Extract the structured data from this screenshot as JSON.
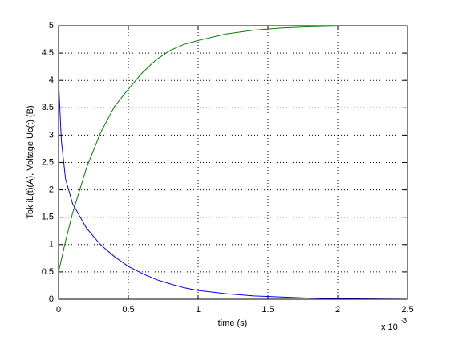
{
  "chart_data": {
    "type": "line",
    "x_label": "time (s)",
    "y_label": "Tok iL(t)(A), Voltage Uc(t) (B)",
    "x_multiplier": {
      "base": "x 10",
      "exponent": "-3"
    },
    "xlim": [
      0,
      2.5
    ],
    "xticks": [
      0,
      0.5,
      1,
      1.5,
      2,
      2.5
    ],
    "ylim": [
      0,
      5
    ],
    "yticks": [
      0,
      0.5,
      1,
      1.5,
      2,
      2.5,
      3,
      3.5,
      4,
      4.5,
      5
    ],
    "grid": true,
    "series": [
      {
        "color": "#0000ff",
        "x": [
          0,
          0.02,
          0.05,
          0.1,
          0.2,
          0.3,
          0.4,
          0.5,
          0.6,
          0.7,
          0.8,
          0.9,
          1.0,
          1.2,
          1.4,
          1.6,
          1.8,
          2.0,
          2.2,
          2.5
        ],
        "values": [
          4.0,
          2.9,
          2.2,
          1.75,
          1.3,
          1.0,
          0.78,
          0.6,
          0.47,
          0.36,
          0.28,
          0.21,
          0.16,
          0.1,
          0.06,
          0.04,
          0.02,
          0.01,
          0.005,
          0
        ]
      },
      {
        "color": "#008000",
        "x": [
          0,
          0.05,
          0.1,
          0.2,
          0.3,
          0.4,
          0.5,
          0.6,
          0.7,
          0.8,
          0.9,
          1.0,
          1.2,
          1.4,
          1.6,
          1.8,
          2.0,
          2.15
        ],
        "values": [
          0.5,
          1.06,
          1.57,
          2.4,
          3.04,
          3.52,
          3.84,
          4.14,
          4.38,
          4.55,
          4.66,
          4.73,
          4.85,
          4.92,
          4.96,
          4.98,
          4.99,
          5.0
        ]
      }
    ]
  }
}
